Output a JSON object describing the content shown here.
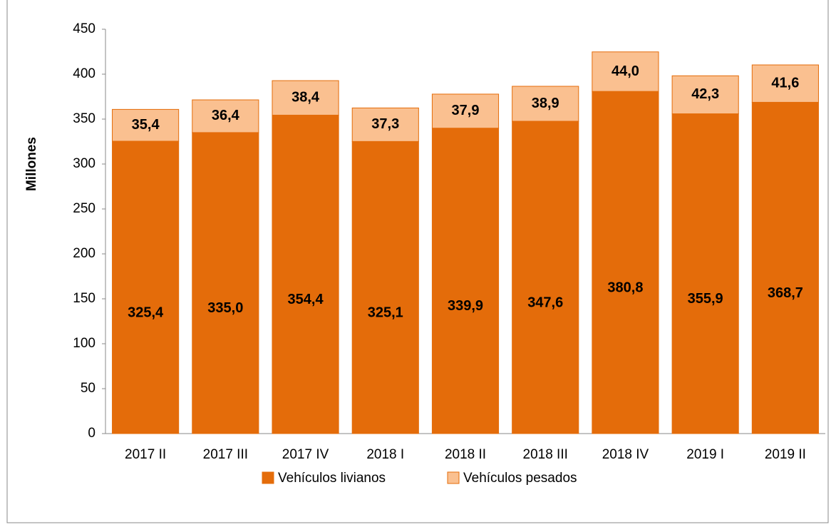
{
  "chart_data": {
    "type": "stacked_bar",
    "y_label": "Millones",
    "categories": [
      "2017 II",
      "2017 III",
      "2017 IV",
      "2018 I",
      "2018 II",
      "2018 III",
      "2018 IV",
      "2019 I",
      "2019 II"
    ],
    "series": [
      {
        "name": "Vehículos livianos",
        "color": "#e46c0a",
        "values": [
          325.4,
          335.0,
          354.4,
          325.1,
          339.9,
          347.6,
          380.8,
          355.9,
          368.7
        ],
        "value_labels": [
          "325,4",
          "335,0",
          "354,4",
          "325,1",
          "339,9",
          "347,6",
          "380,8",
          "355,9",
          "368,7"
        ]
      },
      {
        "name": "Vehículos pesados",
        "color": "#fac090",
        "values": [
          35.4,
          36.4,
          38.4,
          37.3,
          37.9,
          38.9,
          44.0,
          42.3,
          41.6
        ],
        "value_labels": [
          "35,4",
          "36,4",
          "38,4",
          "37,3",
          "37,9",
          "38,9",
          "44,0",
          "42,3",
          "41,6"
        ]
      }
    ],
    "ylim": [
      0,
      450
    ],
    "yticks": [
      0,
      50,
      100,
      150,
      200,
      250,
      300,
      350,
      400,
      450
    ],
    "grid": false,
    "legend": "bottom"
  }
}
